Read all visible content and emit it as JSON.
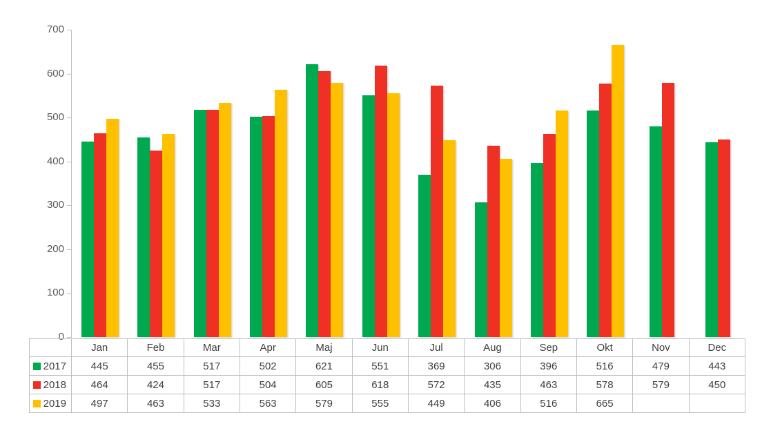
{
  "colors": {
    "background": "#FFFFFF",
    "axis_line": "#BFBFBF",
    "table_border": "#BFBFBF",
    "axis_text": "#595959",
    "table_text": "#3F3F3F",
    "series_2017": "#00A94F",
    "series_2018": "#EE3124",
    "series_2019": "#FFC000"
  },
  "chart_data": {
    "type": "bar",
    "title": "",
    "xlabel": "",
    "ylabel": "",
    "categories": [
      "Jan",
      "Feb",
      "Mar",
      "Apr",
      "Maj",
      "Jun",
      "Jul",
      "Aug",
      "Sep",
      "Okt",
      "Nov",
      "Dec"
    ],
    "series": [
      {
        "name": "2017",
        "color": "#00A94F",
        "values": [
          445,
          455,
          517,
          502,
          621,
          551,
          369,
          306,
          396,
          516,
          479,
          443
        ]
      },
      {
        "name": "2018",
        "color": "#EE3124",
        "values": [
          464,
          424,
          517,
          504,
          605,
          618,
          572,
          435,
          463,
          578,
          579,
          450
        ]
      },
      {
        "name": "2019",
        "color": "#FFC000",
        "values": [
          497,
          463,
          533,
          563,
          579,
          555,
          449,
          406,
          516,
          665,
          null,
          null
        ]
      }
    ],
    "ylim": [
      0,
      700
    ],
    "yticks": [
      0,
      100,
      200,
      300,
      400,
      500,
      600,
      700
    ],
    "grid": false,
    "bar_group_order": [
      "2017",
      "2018",
      "2019"
    ],
    "legend_position": "table-row-headers",
    "data_table_shown": true
  }
}
